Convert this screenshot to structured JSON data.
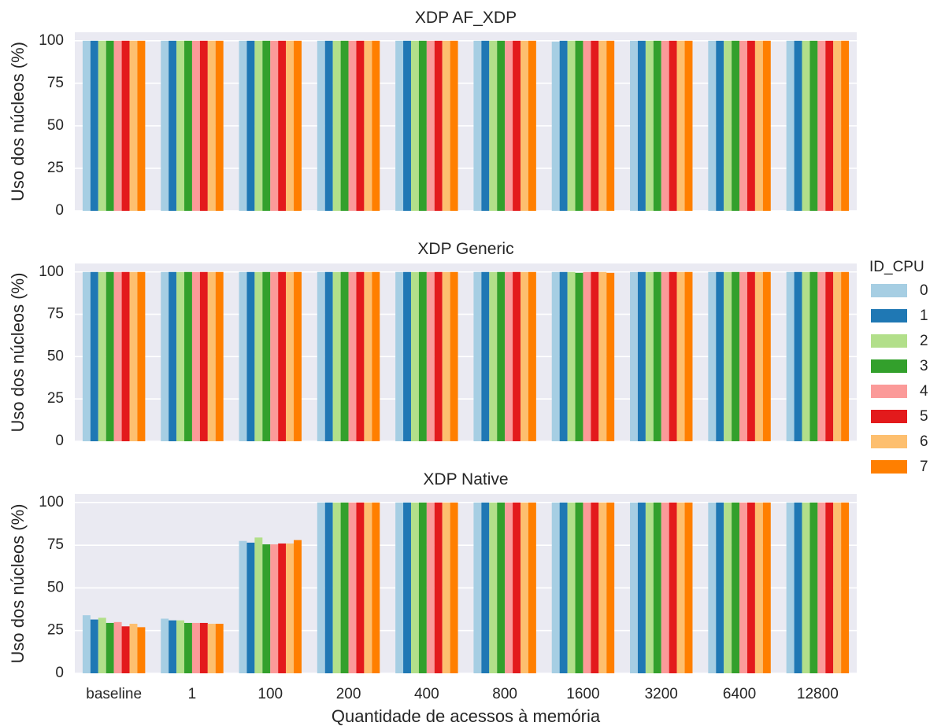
{
  "chart_data": [
    {
      "type": "bar",
      "title": "XDP AF_XDP",
      "ylabel": "Uso dos núcleos (%)",
      "xlabel": "",
      "ylim": [
        0,
        105
      ],
      "yticks": [
        0,
        25,
        50,
        75,
        100
      ],
      "grid": true,
      "categories": [
        "baseline",
        "1",
        "100",
        "200",
        "400",
        "800",
        "1600",
        "3200",
        "6400",
        "12800"
      ],
      "series": [
        {
          "name": "0",
          "values": [
            100,
            100,
            100,
            100,
            100,
            100,
            99.5,
            100,
            100,
            100
          ]
        },
        {
          "name": "1",
          "values": [
            100,
            100,
            100,
            100,
            100,
            100,
            100,
            100,
            100,
            100
          ]
        },
        {
          "name": "2",
          "values": [
            100,
            100,
            100,
            100,
            100,
            100,
            100,
            100,
            100,
            100
          ]
        },
        {
          "name": "3",
          "values": [
            100,
            100,
            100,
            100,
            100,
            100,
            100,
            100,
            100,
            100
          ]
        },
        {
          "name": "4",
          "values": [
            100,
            100,
            100,
            100,
            100,
            100,
            100,
            100,
            100,
            100
          ]
        },
        {
          "name": "5",
          "values": [
            100,
            100,
            100,
            100,
            100,
            100,
            100,
            100,
            100,
            100
          ]
        },
        {
          "name": "6",
          "values": [
            100,
            100,
            100,
            100,
            100,
            100,
            100,
            100,
            100,
            100
          ]
        },
        {
          "name": "7",
          "values": [
            100,
            100,
            100,
            100,
            100,
            100,
            100,
            100,
            100,
            100
          ]
        }
      ]
    },
    {
      "type": "bar",
      "title": "XDP Generic",
      "ylabel": "Uso dos núcleos (%)",
      "xlabel": "",
      "ylim": [
        0,
        105
      ],
      "yticks": [
        0,
        25,
        50,
        75,
        100
      ],
      "grid": true,
      "categories": [
        "baseline",
        "1",
        "100",
        "200",
        "400",
        "800",
        "1600",
        "3200",
        "6400",
        "12800"
      ],
      "series": [
        {
          "name": "0",
          "values": [
            100,
            100,
            100,
            100,
            100,
            100,
            100,
            100,
            100,
            100
          ]
        },
        {
          "name": "1",
          "values": [
            100,
            100,
            100,
            100,
            100,
            100,
            100,
            100,
            100,
            100
          ]
        },
        {
          "name": "2",
          "values": [
            100,
            100,
            100,
            100,
            100,
            100,
            100,
            100,
            100,
            100
          ]
        },
        {
          "name": "3",
          "values": [
            100,
            100,
            100,
            100,
            100,
            100,
            99.5,
            100,
            100,
            100
          ]
        },
        {
          "name": "4",
          "values": [
            100,
            100,
            100,
            100,
            100,
            100,
            100,
            100,
            100,
            100
          ]
        },
        {
          "name": "5",
          "values": [
            100,
            100,
            100,
            100,
            100,
            100,
            100,
            100,
            100,
            100
          ]
        },
        {
          "name": "6",
          "values": [
            100,
            100,
            100,
            100,
            100,
            100,
            100,
            100,
            100,
            100
          ]
        },
        {
          "name": "7",
          "values": [
            100,
            100,
            100,
            100,
            100,
            100,
            99.5,
            100,
            100,
            100
          ]
        }
      ]
    },
    {
      "type": "bar",
      "title": "XDP Native",
      "ylabel": "Uso dos núcleos (%)",
      "xlabel": "Quantidade de acessos à memória",
      "ylim": [
        0,
        105
      ],
      "yticks": [
        0,
        25,
        50,
        75,
        100
      ],
      "grid": true,
      "categories": [
        "baseline",
        "1",
        "100",
        "200",
        "400",
        "800",
        "1600",
        "3200",
        "6400",
        "12800"
      ],
      "series": [
        {
          "name": "0",
          "values": [
            34,
            32,
            77.5,
            100,
            100,
            100,
            100,
            100,
            100,
            100
          ]
        },
        {
          "name": "1",
          "values": [
            31.5,
            31,
            76.5,
            100,
            100,
            100,
            100,
            100,
            100,
            100
          ]
        },
        {
          "name": "2",
          "values": [
            32.5,
            31,
            79.5,
            100,
            100,
            100,
            100,
            100,
            100,
            100
          ]
        },
        {
          "name": "3",
          "values": [
            29.5,
            29.5,
            75.5,
            100,
            100,
            100,
            100,
            100,
            100,
            100
          ]
        },
        {
          "name": "4",
          "values": [
            30,
            29.5,
            75.5,
            100,
            100,
            100,
            100,
            100,
            100,
            100
          ]
        },
        {
          "name": "5",
          "values": [
            27.5,
            29.5,
            76,
            100,
            100,
            100,
            100,
            100,
            100,
            100
          ]
        },
        {
          "name": "6",
          "values": [
            29,
            29,
            76,
            100,
            100,
            100,
            100,
            100,
            100,
            100
          ]
        },
        {
          "name": "7",
          "values": [
            27,
            29,
            78,
            100,
            100,
            100,
            100,
            100,
            100,
            100
          ]
        }
      ]
    }
  ],
  "legend": {
    "title": "ID_CPU",
    "placement": "right",
    "entries": [
      "0",
      "1",
      "2",
      "3",
      "4",
      "5",
      "6",
      "7"
    ]
  },
  "colors": [
    "#a6cee3",
    "#1f78b4",
    "#b2df8a",
    "#33a02c",
    "#fb9a99",
    "#e31a1c",
    "#fdbf6f",
    "#ff7f00"
  ]
}
